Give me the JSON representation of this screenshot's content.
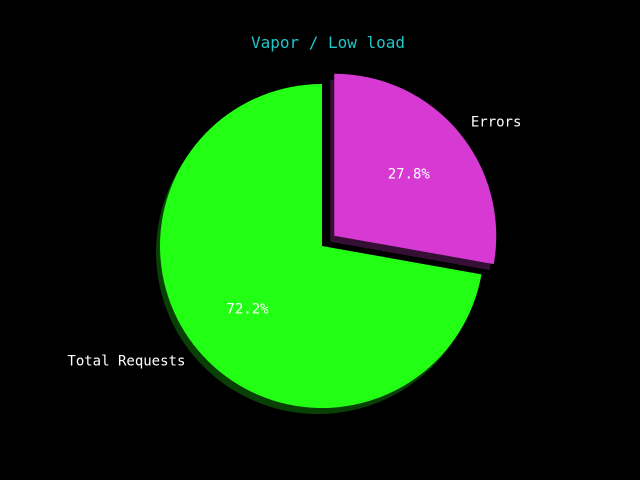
{
  "chart_data": {
    "type": "pie",
    "title": "Vapor / Low load",
    "slices": [
      {
        "label": "Errors",
        "value": 27.8,
        "display": "27.8%",
        "color": "#d63ad3",
        "exploded": true
      },
      {
        "label": "Total Requests",
        "value": 72.2,
        "display": "72.2%",
        "color": "#22ff14",
        "exploded": false
      }
    ],
    "start_angle_deg": 90,
    "direction": "clockwise",
    "shadow": true
  },
  "colors": {
    "background": "#000000",
    "title": "#20c5c8",
    "labels": "#ffffff"
  }
}
